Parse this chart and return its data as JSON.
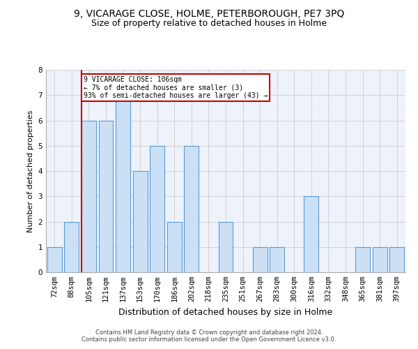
{
  "title1": "9, VICARAGE CLOSE, HOLME, PETERBOROUGH, PE7 3PQ",
  "title2": "Size of property relative to detached houses in Holme",
  "xlabel": "Distribution of detached houses by size in Holme",
  "ylabel": "Number of detached properties",
  "footer1": "Contains HM Land Registry data © Crown copyright and database right 2024.",
  "footer2": "Contains public sector information licensed under the Open Government Licence v3.0.",
  "bar_labels": [
    "72sqm",
    "88sqm",
    "105sqm",
    "121sqm",
    "137sqm",
    "153sqm",
    "170sqm",
    "186sqm",
    "202sqm",
    "218sqm",
    "235sqm",
    "251sqm",
    "267sqm",
    "283sqm",
    "300sqm",
    "316sqm",
    "332sqm",
    "348sqm",
    "365sqm",
    "381sqm",
    "397sqm"
  ],
  "bar_values": [
    1,
    2,
    6,
    6,
    7,
    4,
    5,
    2,
    5,
    0,
    2,
    0,
    1,
    1,
    0,
    3,
    0,
    0,
    1,
    1,
    1
  ],
  "bar_color": "#cce0f5",
  "bar_edgecolor": "#5b9bd5",
  "highlight_index": 2,
  "highlight_line_color": "#cc0000",
  "annotation_line1": "9 VICARAGE CLOSE: 106sqm",
  "annotation_line2": "← 7% of detached houses are smaller (3)",
  "annotation_line3": "93% of semi-detached houses are larger (43) →",
  "annotation_box_color": "#cc0000",
  "ylim": [
    0,
    8
  ],
  "yticks": [
    0,
    1,
    2,
    3,
    4,
    5,
    6,
    7,
    8
  ],
  "grid_color": "#cccccc",
  "bg_color": "#eef2fa",
  "title1_fontsize": 10,
  "title2_fontsize": 9,
  "xlabel_fontsize": 9,
  "ylabel_fontsize": 8,
  "tick_fontsize": 7.5,
  "footer_fontsize": 6
}
